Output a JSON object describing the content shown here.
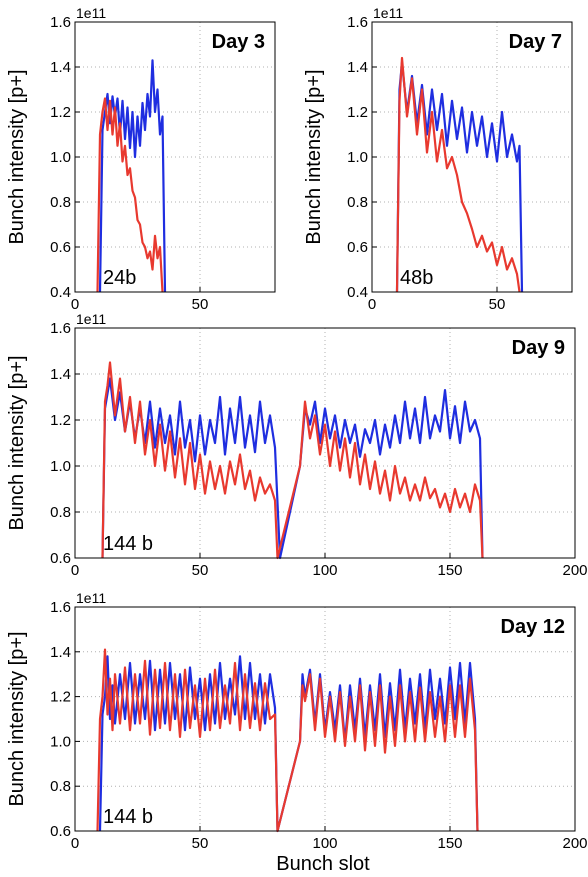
{
  "figure": {
    "xlabel": "Bunch slot",
    "series_colors": {
      "blue": "#1f2ee0",
      "red": "#e8392f"
    }
  },
  "chart_data": [
    {
      "type": "line",
      "title": "Day 3",
      "annotation": "24b",
      "ylabel": "Bunch intensity [p+]",
      "y_offset_label": "1e11",
      "xlim": [
        0,
        80
      ],
      "ylim": [
        0.4,
        1.6
      ],
      "xticks": [
        0,
        50
      ],
      "yticks": [
        0.4,
        0.6,
        0.8,
        1.0,
        1.2,
        1.4,
        1.6
      ],
      "ytick_labels": [
        "0.4",
        "0.6",
        "0.8",
        "1.0",
        "1.2",
        "1.4",
        "1.6"
      ],
      "grid": true,
      "series": [
        {
          "color": "#1f2ee0",
          "x": [
            10,
            11,
            12,
            13,
            14,
            15,
            16,
            17,
            18,
            19,
            20,
            21,
            22,
            23,
            24,
            25,
            26,
            27,
            28,
            29,
            30,
            31,
            32,
            33,
            34,
            35,
            36
          ],
          "y": [
            0.4,
            1.12,
            1.2,
            1.28,
            1.15,
            1.27,
            1.18,
            1.26,
            1.1,
            1.25,
            1.08,
            1.22,
            1.04,
            1.2,
            1.0,
            1.18,
            1.05,
            1.24,
            1.12,
            1.28,
            1.18,
            1.43,
            1.2,
            1.3,
            1.1,
            1.18,
            0.4
          ]
        },
        {
          "color": "#e8392f",
          "x": [
            9,
            10,
            11,
            12,
            13,
            14,
            15,
            16,
            17,
            18,
            19,
            20,
            21,
            22,
            23,
            24,
            25,
            26,
            27,
            28,
            29,
            30,
            31,
            32,
            33,
            34,
            35
          ],
          "y": [
            0.4,
            1.1,
            1.2,
            1.26,
            1.12,
            1.25,
            1.1,
            1.22,
            1.05,
            1.15,
            0.98,
            1.05,
            0.92,
            0.95,
            0.85,
            0.82,
            0.72,
            0.7,
            0.62,
            0.6,
            0.55,
            0.58,
            0.5,
            0.65,
            0.55,
            0.6,
            0.4
          ]
        }
      ]
    },
    {
      "type": "line",
      "title": "Day 7",
      "annotation": "48b",
      "ylabel": "Bunch intensity [p+]",
      "y_offset_label": "1e11",
      "xlim": [
        0,
        80
      ],
      "ylim": [
        0.4,
        1.6
      ],
      "xticks": [
        0,
        50
      ],
      "yticks": [
        0.4,
        0.6,
        0.8,
        1.0,
        1.2,
        1.4,
        1.6
      ],
      "ytick_labels": [
        "0.4",
        "0.6",
        "0.8",
        "1.0",
        "1.2",
        "1.4",
        "1.6"
      ],
      "grid": true,
      "series": [
        {
          "color": "#1f2ee0",
          "x": [
            10,
            11,
            12,
            14,
            16,
            18,
            20,
            22,
            24,
            26,
            28,
            30,
            32,
            34,
            36,
            38,
            40,
            42,
            44,
            46,
            48,
            50,
            52,
            54,
            56,
            58,
            59,
            60
          ],
          "y": [
            0.4,
            1.3,
            1.42,
            1.2,
            1.36,
            1.15,
            1.32,
            1.1,
            1.3,
            1.12,
            1.28,
            1.05,
            1.25,
            1.08,
            1.22,
            1.02,
            1.2,
            1.05,
            1.18,
            1.0,
            1.15,
            0.98,
            1.2,
            1.0,
            1.1,
            0.98,
            1.05,
            0.4
          ]
        },
        {
          "color": "#e8392f",
          "x": [
            10,
            11,
            12,
            14,
            16,
            18,
            20,
            22,
            24,
            26,
            28,
            30,
            32,
            34,
            36,
            38,
            40,
            42,
            44,
            46,
            48,
            50,
            52,
            54,
            56,
            58,
            59
          ],
          "y": [
            0.4,
            1.25,
            1.44,
            1.18,
            1.35,
            1.1,
            1.3,
            1.02,
            1.2,
            0.98,
            1.12,
            0.95,
            1.0,
            0.92,
            0.8,
            0.75,
            0.68,
            0.6,
            0.65,
            0.58,
            0.62,
            0.52,
            0.6,
            0.5,
            0.55,
            0.48,
            0.4
          ]
        }
      ]
    },
    {
      "type": "line",
      "title": "Day 9",
      "annotation": "144 b",
      "ylabel": "Bunch intensity [p+]",
      "y_offset_label": "1e11",
      "xlim": [
        0,
        200
      ],
      "ylim": [
        0.6,
        1.6
      ],
      "xticks": [
        0,
        50,
        100,
        150,
        200
      ],
      "yticks": [
        0.6,
        0.8,
        1.0,
        1.2,
        1.4,
        1.6
      ],
      "ytick_labels": [
        "0.6",
        "0.8",
        "1.0",
        "1.2",
        "1.4",
        "1.6"
      ],
      "grid": true,
      "series": [
        {
          "color": "#1f2ee0",
          "x": [
            11,
            12,
            14,
            16,
            18,
            20,
            22,
            24,
            26,
            28,
            30,
            32,
            34,
            36,
            38,
            40,
            42,
            44,
            46,
            48,
            50,
            52,
            54,
            56,
            58,
            60,
            62,
            64,
            66,
            68,
            70,
            72,
            74,
            76,
            78,
            80,
            82,
            90,
            92,
            94,
            96,
            98,
            100,
            102,
            104,
            106,
            108,
            110,
            112,
            114,
            116,
            118,
            120,
            122,
            124,
            126,
            128,
            130,
            132,
            134,
            136,
            138,
            140,
            142,
            144,
            146,
            148,
            150,
            152,
            154,
            156,
            158,
            160,
            162,
            163
          ],
          "y": [
            0.6,
            1.25,
            1.38,
            1.2,
            1.32,
            1.15,
            1.28,
            1.12,
            1.25,
            1.1,
            1.28,
            1.08,
            1.25,
            1.1,
            1.22,
            1.05,
            1.28,
            1.08,
            1.2,
            1.02,
            1.22,
            1.05,
            1.2,
            1.1,
            1.3,
            1.05,
            1.25,
            1.1,
            1.3,
            1.08,
            1.22,
            1.06,
            1.28,
            1.1,
            1.22,
            1.08,
            0.6,
            1.0,
            1.25,
            1.18,
            1.28,
            1.1,
            1.25,
            1.12,
            1.22,
            1.08,
            1.2,
            1.1,
            1.18,
            1.04,
            1.16,
            1.1,
            1.2,
            1.05,
            1.18,
            1.08,
            1.22,
            1.1,
            1.28,
            1.12,
            1.25,
            1.1,
            1.3,
            1.12,
            1.22,
            1.15,
            1.33,
            1.12,
            1.26,
            1.1,
            1.28,
            1.15,
            1.2,
            1.12,
            0.6
          ]
        },
        {
          "color": "#e8392f",
          "x": [
            11,
            12,
            13,
            14,
            16,
            18,
            20,
            22,
            24,
            26,
            28,
            30,
            32,
            34,
            36,
            38,
            40,
            42,
            44,
            46,
            48,
            50,
            52,
            54,
            56,
            58,
            60,
            62,
            64,
            66,
            68,
            70,
            72,
            74,
            76,
            78,
            80,
            81,
            90,
            92,
            94,
            96,
            98,
            100,
            102,
            104,
            106,
            108,
            110,
            112,
            114,
            116,
            118,
            120,
            122,
            124,
            126,
            128,
            130,
            132,
            134,
            136,
            138,
            140,
            142,
            144,
            146,
            148,
            150,
            152,
            154,
            156,
            158,
            160,
            162,
            163
          ],
          "y": [
            0.6,
            1.28,
            1.35,
            1.45,
            1.22,
            1.38,
            1.15,
            1.3,
            1.1,
            1.28,
            1.05,
            1.2,
            1.0,
            1.18,
            0.98,
            1.15,
            0.95,
            1.12,
            0.92,
            1.1,
            0.9,
            1.05,
            0.88,
            1.02,
            0.9,
            1.0,
            0.88,
            1.02,
            0.92,
            1.05,
            0.9,
            0.98,
            0.85,
            0.95,
            0.88,
            0.92,
            0.85,
            0.6,
            1.0,
            1.28,
            1.12,
            1.22,
            1.05,
            1.18,
            1.0,
            1.15,
            0.98,
            1.12,
            0.95,
            1.1,
            0.92,
            1.05,
            0.9,
            1.02,
            0.88,
            0.98,
            0.85,
            1.0,
            0.88,
            0.95,
            0.85,
            0.92,
            0.85,
            0.95,
            0.86,
            0.9,
            0.82,
            0.88,
            0.8,
            0.9,
            0.82,
            0.88,
            0.8,
            0.92,
            0.85,
            0.6
          ]
        }
      ]
    },
    {
      "type": "line",
      "title": "Day 12",
      "annotation": "144 b",
      "xlabel": "Bunch slot",
      "ylabel": "Bunch intensity [p+]",
      "y_offset_label": "1e11",
      "xlim": [
        0,
        200
      ],
      "ylim": [
        0.6,
        1.6
      ],
      "xticks": [
        0,
        50,
        100,
        150,
        200
      ],
      "yticks": [
        0.6,
        0.8,
        1.0,
        1.2,
        1.4,
        1.6
      ],
      "ytick_labels": [
        "0.6",
        "0.8",
        "1.0",
        "1.2",
        "1.4",
        "1.6"
      ],
      "grid": true,
      "series": [
        {
          "color": "#1f2ee0",
          "x": [
            10,
            11,
            12,
            13,
            14,
            15,
            16,
            18,
            20,
            22,
            24,
            26,
            28,
            30,
            32,
            34,
            36,
            38,
            40,
            42,
            44,
            46,
            48,
            50,
            52,
            54,
            56,
            58,
            60,
            62,
            64,
            66,
            68,
            70,
            72,
            74,
            76,
            78,
            80,
            81,
            90,
            91,
            92,
            94,
            96,
            98,
            100,
            102,
            104,
            106,
            108,
            110,
            112,
            114,
            116,
            118,
            120,
            122,
            124,
            126,
            128,
            130,
            132,
            134,
            136,
            138,
            140,
            142,
            144,
            146,
            148,
            150,
            152,
            154,
            156,
            158,
            160,
            161
          ],
          "y": [
            0.6,
            1.12,
            1.2,
            1.38,
            1.1,
            1.25,
            1.08,
            1.3,
            1.1,
            1.35,
            1.08,
            1.3,
            1.1,
            1.36,
            1.05,
            1.32,
            1.08,
            1.35,
            1.1,
            1.3,
            1.05,
            1.33,
            1.1,
            1.28,
            1.05,
            1.3,
            1.08,
            1.35,
            1.1,
            1.28,
            1.12,
            1.38,
            1.1,
            1.35,
            1.1,
            1.3,
            1.08,
            1.3,
            1.15,
            0.6,
            1.0,
            1.3,
            1.2,
            1.32,
            1.08,
            1.3,
            1.05,
            1.22,
            1.05,
            1.25,
            1.0,
            1.25,
            1.05,
            1.28,
            1.02,
            1.25,
            1.05,
            1.3,
            1.02,
            1.26,
            1.05,
            1.32,
            1.05,
            1.28,
            1.08,
            1.3,
            1.05,
            1.32,
            1.1,
            1.28,
            1.08,
            1.33,
            1.1,
            1.35,
            1.08,
            1.35,
            1.1,
            0.6
          ]
        },
        {
          "color": "#e8392f",
          "x": [
            9,
            10,
            11,
            12,
            13,
            14,
            15,
            16,
            18,
            20,
            22,
            24,
            26,
            28,
            30,
            32,
            34,
            36,
            38,
            40,
            42,
            44,
            46,
            48,
            50,
            52,
            54,
            56,
            58,
            60,
            62,
            64,
            66,
            68,
            70,
            72,
            74,
            76,
            78,
            80,
            81,
            90,
            91,
            92,
            94,
            96,
            98,
            100,
            102,
            104,
            106,
            108,
            110,
            112,
            114,
            116,
            118,
            120,
            122,
            124,
            126,
            128,
            130,
            132,
            134,
            136,
            138,
            140,
            142,
            144,
            146,
            148,
            150,
            152,
            154,
            156,
            158,
            160,
            161
          ],
          "y": [
            0.6,
            1.1,
            1.2,
            1.41,
            1.12,
            1.28,
            1.05,
            1.3,
            1.08,
            1.33,
            1.05,
            1.3,
            1.08,
            1.36,
            1.03,
            1.32,
            1.06,
            1.35,
            1.05,
            1.3,
            1.02,
            1.32,
            1.06,
            1.25,
            1.02,
            1.28,
            1.05,
            1.32,
            1.06,
            1.25,
            1.08,
            1.35,
            1.05,
            1.3,
            1.06,
            1.26,
            1.05,
            1.26,
            1.1,
            1.12,
            0.6,
            1.0,
            1.25,
            1.18,
            1.3,
            1.05,
            1.28,
            1.02,
            1.2,
            1.0,
            1.22,
            0.98,
            1.2,
            1.0,
            1.25,
            0.96,
            1.22,
            0.98,
            1.25,
            0.95,
            1.2,
            0.98,
            1.25,
            1.0,
            1.22,
            1.0,
            1.24,
            1.0,
            1.22,
            1.02,
            1.2,
            1.0,
            1.25,
            1.02,
            1.25,
            1.02,
            1.28,
            1.05,
            0.6
          ]
        }
      ]
    }
  ]
}
